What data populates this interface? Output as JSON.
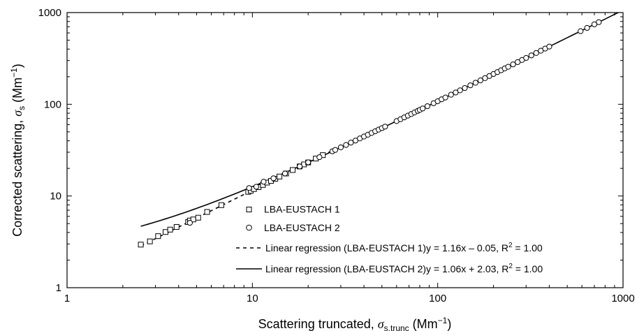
{
  "chart_data": {
    "type": "scatter",
    "xscale": "log",
    "yscale": "log",
    "xlim": [
      1,
      1000
    ],
    "ylim": [
      1,
      1000
    ],
    "grid": false,
    "legend_placement": "bottom-right",
    "xlabel": {
      "main": "Scattering truncated, ",
      "sym": "σ",
      "sub": "s,trunc",
      "unit_pre": " (Mm",
      "unit_sup": "−1",
      "unit_post": ")"
    },
    "ylabel": {
      "main": "Corrected scattering, ",
      "sym": "σ",
      "sub": "s",
      "unit_pre": " (Mm",
      "unit_sup": "−1",
      "unit_post": ")"
    },
    "x_ticks": [
      {
        "value": 1,
        "label": "1"
      },
      {
        "value": 10,
        "label": "10"
      },
      {
        "value": 100,
        "label": "100"
      },
      {
        "value": 1000,
        "label": "1000"
      }
    ],
    "y_ticks": [
      {
        "value": 1,
        "label": "1"
      },
      {
        "value": 10,
        "label": "10"
      },
      {
        "value": 100,
        "label": "100"
      },
      {
        "value": 1000,
        "label": "1000"
      }
    ],
    "series": [
      {
        "name": "LBA-EUSTACH 1",
        "marker": "square",
        "points": [
          [
            2.5,
            2.95
          ],
          [
            2.8,
            3.2
          ],
          [
            3.1,
            3.65
          ],
          [
            3.4,
            4.05
          ],
          [
            3.6,
            4.3
          ],
          [
            3.9,
            4.6
          ],
          [
            4.5,
            5.2
          ],
          [
            4.6,
            5.4
          ],
          [
            4.8,
            5.55
          ],
          [
            5.1,
            5.8
          ],
          [
            5.7,
            6.7
          ],
          [
            6.8,
            7.95
          ],
          [
            9.5,
            11.1
          ],
          [
            9.8,
            11.4
          ],
          [
            10.2,
            11.9
          ],
          [
            10.8,
            12.5
          ],
          [
            11.4,
            13.2
          ],
          [
            12.0,
            14.0
          ],
          [
            12.6,
            14.6
          ],
          [
            13.3,
            15.4
          ],
          [
            14.0,
            16.3
          ],
          [
            15.2,
            17.6
          ],
          [
            16.5,
            19.2
          ],
          [
            18.0,
            21.0
          ],
          [
            19.0,
            22.1
          ],
          [
            20.0,
            23.2
          ],
          [
            22.0,
            25.6
          ],
          [
            24.0,
            27.9
          ]
        ]
      },
      {
        "name": "LBA-EUSTACH 2",
        "marker": "circle",
        "points": [
          [
            4.6,
            5.1
          ],
          [
            9.6,
            12.2
          ],
          [
            10.5,
            12.6
          ],
          [
            11.5,
            14.3
          ],
          [
            13.0,
            15.6
          ],
          [
            15.0,
            17.6
          ],
          [
            18.0,
            21.0
          ],
          [
            20.0,
            23.3
          ],
          [
            23.0,
            26.5
          ],
          [
            27.0,
            30.7
          ],
          [
            28.0,
            31.8
          ],
          [
            30.0,
            33.9
          ],
          [
            32.0,
            36.0
          ],
          [
            34.0,
            38.2
          ],
          [
            36.0,
            40.2
          ],
          [
            38.0,
            42.4
          ],
          [
            40.0,
            44.5
          ],
          [
            42.0,
            46.6
          ],
          [
            44.0,
            48.7
          ],
          [
            46.0,
            50.8
          ],
          [
            48.0,
            52.9
          ],
          [
            50.0,
            55.0
          ],
          [
            52.0,
            57.1
          ],
          [
            60.0,
            65.6
          ],
          [
            63.0,
            68.8
          ],
          [
            66.0,
            72.0
          ],
          [
            69.0,
            75.2
          ],
          [
            72.0,
            78.3
          ],
          [
            75.0,
            81.5
          ],
          [
            78.0,
            84.7
          ],
          [
            80.0,
            86.8
          ],
          [
            83.0,
            90.0
          ],
          [
            88.0,
            95.3
          ],
          [
            95.0,
            102.7
          ],
          [
            100.0,
            108.0
          ],
          [
            105.0,
            113.3
          ],
          [
            110.0,
            118.6
          ],
          [
            118.0,
            127.1
          ],
          [
            125.0,
            134.5
          ],
          [
            132.0,
            141.9
          ],
          [
            140.0,
            150.4
          ],
          [
            150.0,
            161.0
          ],
          [
            160.0,
            171.6
          ],
          [
            170.0,
            182.2
          ],
          [
            180.0,
            192.8
          ],
          [
            190.0,
            203.4
          ],
          [
            200.0,
            214.0
          ],
          [
            210.0,
            224.6
          ],
          [
            220.0,
            235.2
          ],
          [
            230.0,
            245.8
          ],
          [
            240.0,
            256.4
          ],
          [
            255.0,
            272.3
          ],
          [
            270.0,
            288.2
          ],
          [
            285.0,
            304.1
          ],
          [
            300.0,
            320.0
          ],
          [
            320.0,
            341.2
          ],
          [
            340.0,
            362.4
          ],
          [
            360.0,
            383.6
          ],
          [
            380.0,
            404.8
          ],
          [
            400.0,
            426.0
          ],
          [
            590.0,
            627.4
          ],
          [
            640.0,
            680.4
          ],
          [
            700.0,
            744.0
          ],
          [
            740.0,
            786.4
          ]
        ]
      }
    ],
    "regressions": [
      {
        "label": "Linear regression (LBA-EUSTACH 1)",
        "equation": "y = 1.16x – 0.05, R",
        "r2_sup": "2",
        "r2_tail": " = 1.00",
        "slope": 1.16,
        "intercept": -0.05,
        "style": "dashed",
        "x_range": [
          2.5,
          27
        ]
      },
      {
        "label": "Linear regression (LBA-EUSTACH 2)",
        "equation": "y = 1.06x + 2.03, R",
        "r2_sup": "2",
        "r2_tail": " = 1.00",
        "slope": 1.06,
        "intercept": 2.03,
        "style": "solid",
        "x_range": [
          2.5,
          1000
        ]
      }
    ]
  }
}
